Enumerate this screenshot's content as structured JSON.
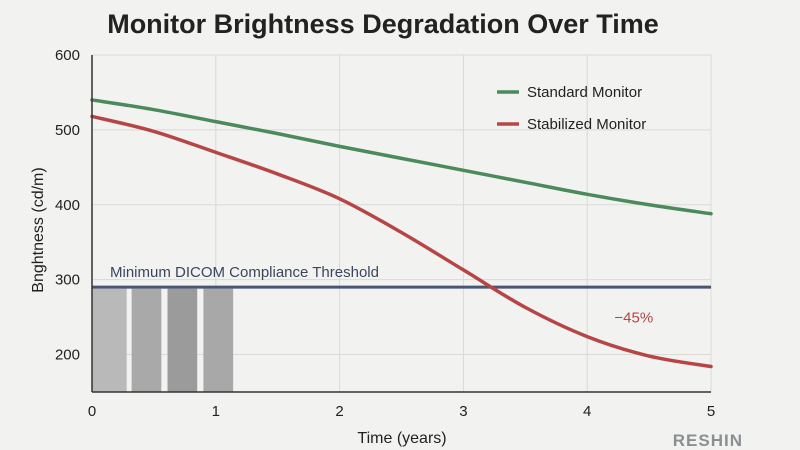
{
  "chart_data": {
    "type": "line",
    "title": "Monitor Brightness Degradation Over Time",
    "xlabel": "Time (years)",
    "ylabel": "Bnghtness (cd/m)",
    "xlim": [
      0,
      5
    ],
    "ylim": [
      150,
      600
    ],
    "x_ticks": [
      "0",
      "1",
      "2",
      "3",
      "4",
      "5"
    ],
    "y_ticks": [
      "200",
      "300",
      "400",
      "500",
      "600"
    ],
    "grid": true,
    "legend_position": "top-right",
    "series": [
      {
        "name": "Standard Monitor",
        "color": "#4a8a5c",
        "x": [
          0,
          0.5,
          1,
          1.5,
          2,
          2.5,
          3,
          3.5,
          4,
          4.5,
          5
        ],
        "y": [
          540,
          527,
          511,
          495,
          478,
          462,
          446,
          430,
          414,
          400,
          388
        ]
      },
      {
        "name": "Stabilized Monitor",
        "color": "#b84545",
        "x": [
          0,
          0.5,
          1,
          1.5,
          2,
          2.5,
          3,
          3.5,
          4,
          4.5,
          5
        ],
        "y": [
          518,
          498,
          470,
          441,
          408,
          363,
          313,
          263,
          224,
          198,
          184
        ]
      }
    ],
    "threshold": {
      "label": "Minimum DICOM Compliance Threshold",
      "value": 290,
      "color": "#4a5570"
    },
    "bars": [
      {
        "x_start": 0,
        "x_end": 0.28,
        "value": 288,
        "color": "#b9b9b9"
      },
      {
        "x_start": 0.32,
        "x_end": 0.56,
        "value": 288,
        "color": "#a9a9a9"
      },
      {
        "x_start": 0.61,
        "x_end": 0.85,
        "value": 288,
        "color": "#9b9b9b"
      },
      {
        "x_start": 0.9,
        "x_end": 1.14,
        "value": 288,
        "color": "#a8a8a8"
      }
    ],
    "annotations": [
      {
        "text": "−45%",
        "x": 4.22,
        "y": 243,
        "color": "#b84545"
      }
    ]
  },
  "watermark": "RESHIN"
}
